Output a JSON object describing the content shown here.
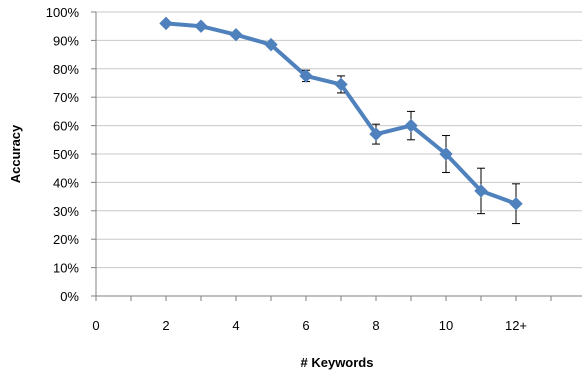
{
  "chart_data": {
    "type": "line",
    "title": "",
    "xlabel": "# Keywords",
    "ylabel": "Accuracy",
    "grid": true,
    "legend": "none",
    "xlim": [
      0,
      14
    ],
    "ylim": [
      0,
      100
    ],
    "y_ticks": [
      "0%",
      "10%",
      "20%",
      "30%",
      "40%",
      "50%",
      "60%",
      "70%",
      "80%",
      "90%",
      "100%"
    ],
    "x_ticks": [
      {
        "value": 0,
        "label": "0"
      },
      {
        "value": 2,
        "label": "2"
      },
      {
        "value": 4,
        "label": "4"
      },
      {
        "value": 6,
        "label": "6"
      },
      {
        "value": 8,
        "label": "8"
      },
      {
        "value": 10,
        "label": "10"
      },
      {
        "value": 12,
        "label": "12+"
      }
    ],
    "series": [
      {
        "color": "#4f81bd",
        "marker": "diamond",
        "points": [
          {
            "x": 2,
            "y": 96,
            "err": 0
          },
          {
            "x": 3,
            "y": 95,
            "err": 0
          },
          {
            "x": 4,
            "y": 92,
            "err": 0
          },
          {
            "x": 5,
            "y": 88.5,
            "err": 0
          },
          {
            "x": 6,
            "y": 77.5,
            "err": 2
          },
          {
            "x": 7,
            "y": 74.5,
            "err": 3
          },
          {
            "x": 8,
            "y": 57,
            "err": 3.5
          },
          {
            "x": 9,
            "y": 60,
            "err": 5
          },
          {
            "x": 10,
            "y": 50,
            "err": 6.5
          },
          {
            "x": 11,
            "y": 37,
            "err": 8
          },
          {
            "x": 12,
            "y": 32.5,
            "err": 7
          }
        ]
      }
    ]
  }
}
